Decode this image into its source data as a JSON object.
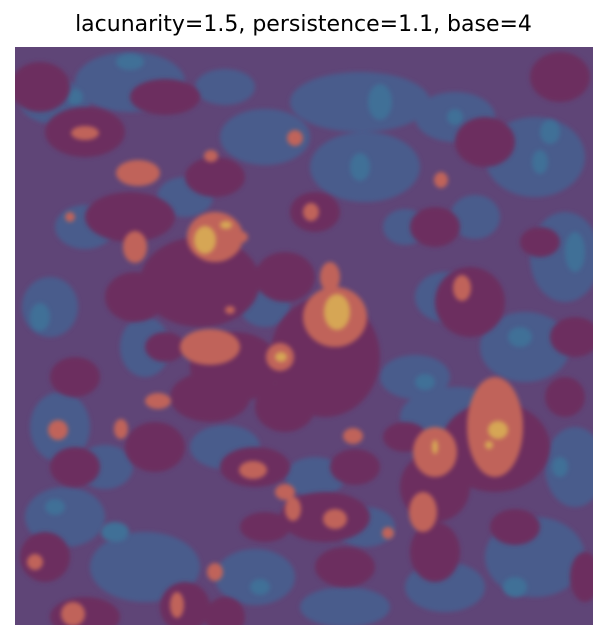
{
  "title": "lacunarity=1.5, persistence=1.1, base=4",
  "colors": {
    "level_1": "#4a5b8c",
    "level_2": "#5f4577",
    "level_3": "#6c2e5e",
    "level_4": "#c0635a",
    "level_5": "#d6a654",
    "level_0": "#3f6f97"
  }
}
